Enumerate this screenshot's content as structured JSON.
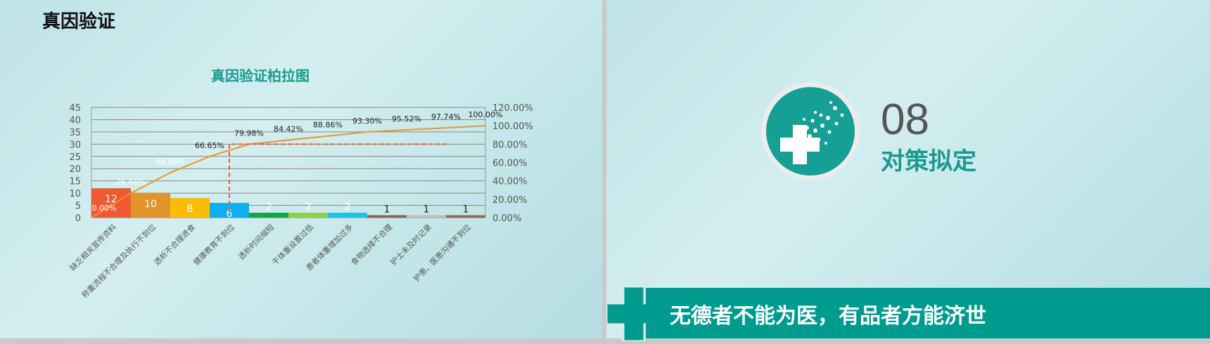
{
  "left_slide": {
    "title": "真因验证"
  },
  "right_slide": {
    "section_number": "08",
    "section_title": "对策拟定",
    "banner_text": "无德者不能为医，有品者方能济世",
    "icon": "cross-doves-icon",
    "accent": "#009b8f"
  },
  "chart_data": {
    "type": "bar+line",
    "title": "真因验证柏拉图",
    "categories": [
      "缺乏相关宣传资料",
      "称重流程不合理及执行不到位",
      "透析不合理进食",
      "健康教育不到位",
      "透析时间缩短",
      "干体重设置过低",
      "患者体重增加过多",
      "食物选择不合理",
      "护士未及时记录",
      "护患、医患沟通不到位"
    ],
    "values": [
      12,
      10,
      8,
      6,
      2,
      2,
      2,
      1,
      1,
      1
    ],
    "bar_colors": [
      "#f05a32",
      "#e0942a",
      "#fbbc05",
      "#0eaeef",
      "#12a54a",
      "#8dcf4e",
      "#1cc3e8",
      "#8a6352",
      "#bdbdbd",
      "#8d6d4e"
    ],
    "cumulative": [
      0,
      26.66,
      48.88,
      66.65,
      79.98,
      84.42,
      88.86,
      93.3,
      95.52,
      97.74,
      100
    ],
    "cumulative_labels": [
      "0.00%",
      "26.66%",
      "48.88%",
      "66.65%",
      "79.98%",
      "84.42%",
      "88.86%",
      "93.30%",
      "95.52%",
      "97.74%",
      "100.00%"
    ],
    "ylim": [
      0,
      45
    ],
    "y_ticks": [
      "0",
      "5",
      "10",
      "15",
      "20",
      "25",
      "30",
      "35",
      "40",
      "45"
    ],
    "y2lim": [
      0,
      120
    ],
    "y2_ticks": [
      "0.00%",
      "20.00%",
      "40.00%",
      "60.00%",
      "80.00%",
      "100.00%",
      "120.00%"
    ],
    "line_color": "#e8962a",
    "reference_line": 80,
    "grid": true
  }
}
